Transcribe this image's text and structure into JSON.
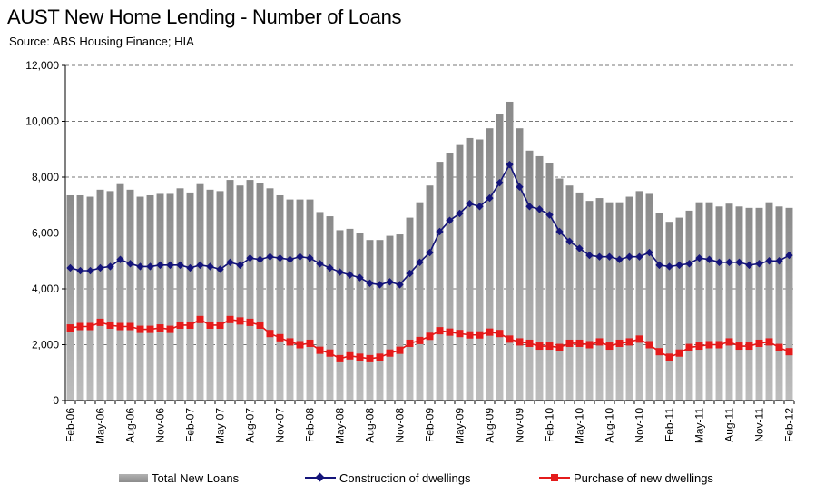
{
  "title": "AUST New Home Lending - Number of Loans",
  "subtitle": "Source: ABS Housing Finance; HIA",
  "chart_data": {
    "type": "bar",
    "title": "AUST New Home Lending - Number of Loans",
    "subtitle": "Source: ABS Housing Finance; HIA",
    "xlabel": "",
    "ylabel": "",
    "ylim": [
      0,
      12000
    ],
    "yticks": [
      "0",
      "2,000",
      "4,000",
      "6,000",
      "8,000",
      "10,000",
      "12,000"
    ],
    "grid": "horizontal dashed",
    "legend_position": "bottom",
    "tick_labels": [
      "Feb-06",
      "May-06",
      "Aug-06",
      "Nov-06",
      "Feb-07",
      "May-07",
      "Aug-07",
      "Nov-07",
      "Feb-08",
      "May-08",
      "Aug-08",
      "Nov-08",
      "Feb-09",
      "May-09",
      "Aug-09",
      "Nov-09",
      "Feb-10",
      "May-10",
      "Aug-10",
      "Nov-10",
      "Feb-11",
      "May-11",
      "Aug-11",
      "Nov-11",
      "Feb-12"
    ],
    "categories": [
      "Feb-06",
      "Mar-06",
      "Apr-06",
      "May-06",
      "Jun-06",
      "Jul-06",
      "Aug-06",
      "Sep-06",
      "Oct-06",
      "Nov-06",
      "Dec-06",
      "Jan-07",
      "Feb-07",
      "Mar-07",
      "Apr-07",
      "May-07",
      "Jun-07",
      "Jul-07",
      "Aug-07",
      "Sep-07",
      "Oct-07",
      "Nov-07",
      "Dec-07",
      "Jan-08",
      "Feb-08",
      "Mar-08",
      "Apr-08",
      "May-08",
      "Jun-08",
      "Jul-08",
      "Aug-08",
      "Sep-08",
      "Oct-08",
      "Nov-08",
      "Dec-08",
      "Jan-09",
      "Feb-09",
      "Mar-09",
      "Apr-09",
      "May-09",
      "Jun-09",
      "Jul-09",
      "Aug-09",
      "Sep-09",
      "Oct-09",
      "Nov-09",
      "Dec-09",
      "Jan-10",
      "Feb-10",
      "Mar-10",
      "Apr-10",
      "May-10",
      "Jun-10",
      "Jul-10",
      "Aug-10",
      "Sep-10",
      "Oct-10",
      "Nov-10",
      "Dec-10",
      "Jan-11",
      "Feb-11",
      "Mar-11",
      "Apr-11",
      "May-11",
      "Jun-11",
      "Jul-11",
      "Aug-11",
      "Sep-11",
      "Oct-11",
      "Nov-11",
      "Dec-11",
      "Jan-12",
      "Feb-12"
    ],
    "series": [
      {
        "name": "Total New Loans",
        "type": "bar",
        "color": "#9a9a9a",
        "values": [
          7350,
          7350,
          7300,
          7550,
          7500,
          7750,
          7550,
          7300,
          7350,
          7400,
          7400,
          7600,
          7450,
          7750,
          7550,
          7500,
          7900,
          7700,
          7900,
          7800,
          7600,
          7350,
          7200,
          7200,
          7200,
          6750,
          6600,
          6100,
          6150,
          6000,
          5750,
          5750,
          5900,
          5950,
          6550,
          7100,
          7700,
          8550,
          8850,
          9150,
          9400,
          9350,
          9750,
          10250,
          10700,
          9750,
          8950,
          8750,
          8500,
          7950,
          7700,
          7450,
          7150,
          7250,
          7100,
          7100,
          7300,
          7500,
          7400,
          6700,
          6400,
          6550,
          6800,
          7100,
          7100,
          6950,
          7050,
          6950,
          6900,
          6900,
          7100,
          6950,
          6900
        ]
      },
      {
        "name": "Construction of dwellings",
        "type": "line",
        "color": "#14147a",
        "marker": "diamond",
        "values": [
          4750,
          4650,
          4650,
          4750,
          4800,
          5050,
          4900,
          4800,
          4800,
          4850,
          4850,
          4850,
          4750,
          4850,
          4800,
          4700,
          4950,
          4850,
          5100,
          5050,
          5150,
          5100,
          5050,
          5150,
          5100,
          4900,
          4750,
          4600,
          4500,
          4400,
          4200,
          4150,
          4250,
          4150,
          4550,
          4950,
          5300,
          6050,
          6450,
          6700,
          7050,
          6950,
          7250,
          7800,
          8450,
          7650,
          6950,
          6850,
          6650,
          6050,
          5700,
          5450,
          5200,
          5150,
          5150,
          5050,
          5150,
          5150,
          5300,
          4850,
          4800,
          4850,
          4900,
          5100,
          5050,
          4950,
          4950,
          4950,
          4850,
          4900,
          5000,
          5000,
          5200
        ]
      },
      {
        "name": "Purchase of new dwellings",
        "type": "line",
        "color": "#e41b1b",
        "marker": "square",
        "values": [
          2600,
          2650,
          2650,
          2800,
          2700,
          2650,
          2650,
          2550,
          2550,
          2600,
          2550,
          2700,
          2700,
          2900,
          2700,
          2700,
          2900,
          2850,
          2800,
          2700,
          2400,
          2250,
          2100,
          2000,
          2050,
          1800,
          1700,
          1500,
          1600,
          1550,
          1500,
          1550,
          1700,
          1800,
          2050,
          2150,
          2300,
          2500,
          2450,
          2400,
          2350,
          2350,
          2450,
          2400,
          2200,
          2100,
          2050,
          1950,
          1950,
          1900,
          2050,
          2050,
          2000,
          2100,
          1950,
          2050,
          2100,
          2200,
          2000,
          1750,
          1550,
          1700,
          1900,
          1950,
          2000,
          2000,
          2100,
          1950,
          1950,
          2050,
          2100,
          1900,
          1750
        ]
      }
    ]
  }
}
